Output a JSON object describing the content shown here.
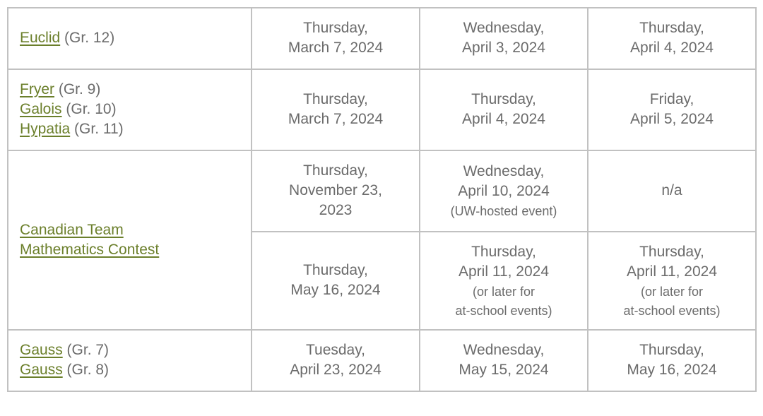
{
  "contests": {
    "euclid": {
      "name": "Euclid",
      "grade": "(Gr. 12)"
    },
    "fryer": {
      "name": "Fryer",
      "grade": "(Gr. 9)"
    },
    "galois": {
      "name": "Galois",
      "grade": "(Gr. 10)"
    },
    "hypatia": {
      "name": "Hypatia",
      "grade": "(Gr. 11)"
    },
    "ctmc_line1": "Canadian Team",
    "ctmc_line2": "Mathematics Contest",
    "gauss7": {
      "name": "Gauss",
      "grade": "(Gr. 7)"
    },
    "gauss8": {
      "name": "Gauss",
      "grade": "(Gr. 8)"
    }
  },
  "rows": {
    "r1": {
      "d1l1": "Thursday,",
      "d1l2": "March 7, 2024",
      "d2l1": "Wednesday,",
      "d2l2": "April 3, 2024",
      "d3l1": "Thursday,",
      "d3l2": "April 4, 2024"
    },
    "r2": {
      "d1l1": "Thursday,",
      "d1l2": "March 7, 2024",
      "d2l1": "Thursday,",
      "d2l2": "April 4, 2024",
      "d3l1": "Friday,",
      "d3l2": "April 5, 2024"
    },
    "r3a": {
      "d1l1": "Thursday,",
      "d1l2": "November 23,",
      "d1l3": "2023",
      "d2l1": "Wednesday,",
      "d2l2": "April 10, 2024",
      "d2note": "(UW-hosted event)",
      "d3": "n/a"
    },
    "r3b": {
      "d1l1": "Thursday,",
      "d1l2": "May 16, 2024",
      "d2l1": "Thursday,",
      "d2l2": "April 11, 2024",
      "d2note1": "(or later for",
      "d2note2": "at-school events)",
      "d3l1": "Thursday,",
      "d3l2": "April 11, 2024",
      "d3note1": "(or later for",
      "d3note2": "at-school events)"
    },
    "r4": {
      "d1l1": "Tuesday,",
      "d1l2": "April 23, 2024",
      "d2l1": "Wednesday,",
      "d2l2": "May 15, 2024",
      "d3l1": "Thursday,",
      "d3l2": "May 16, 2024"
    }
  }
}
